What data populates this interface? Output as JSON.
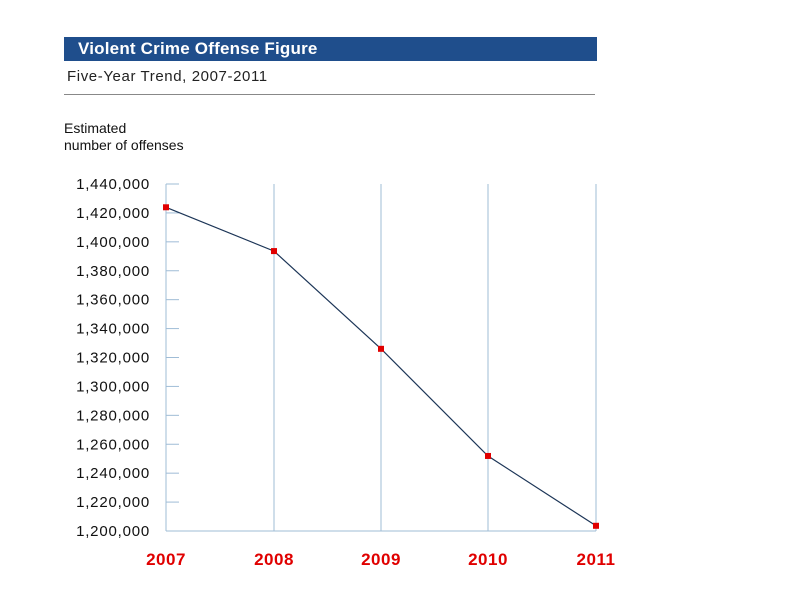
{
  "header": {
    "title": "Violent Crime Offense Figure",
    "subtitle": "Five-Year Trend, 2007-2011"
  },
  "chart_data": {
    "type": "line",
    "title": "Violent Crime Offense Figure",
    "subtitle": "Five-Year Trend, 2007-2011",
    "ylabel_lines": [
      "Estimated",
      "number of offenses"
    ],
    "xlabel": "",
    "categories": [
      "2007",
      "2008",
      "2009",
      "2010",
      "2011"
    ],
    "series": [
      {
        "values": [
          1423900,
          1393600,
          1326000,
          1251900,
          1203600
        ]
      }
    ],
    "ylim": [
      1200000,
      1440000
    ],
    "yticks": [
      1200000,
      1220000,
      1240000,
      1260000,
      1280000,
      1300000,
      1320000,
      1340000,
      1360000,
      1380000,
      1400000,
      1420000,
      1440000
    ],
    "ytick_labels": [
      "1,200,000",
      "1,220,000",
      "1,240,000",
      "1,260,000",
      "1,280,000",
      "1,300,000",
      "1,320,000",
      "1,340,000",
      "1,360,000",
      "1,380,000",
      "1,400,000",
      "1,420,000",
      "1,440,000"
    ],
    "grid": "vertical",
    "colors": {
      "title_bar": "#1f4e8c",
      "line": "#1c3557",
      "marker": "#e00000",
      "x_labels": "#e00000",
      "grid": "#9fbcd6"
    }
  }
}
